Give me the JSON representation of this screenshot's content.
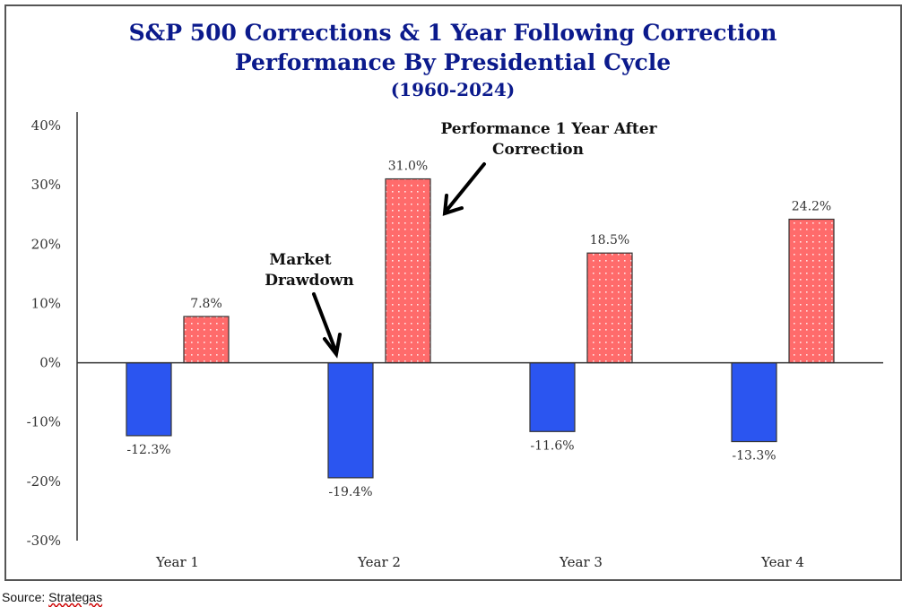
{
  "chart_data": {
    "type": "bar",
    "title": [
      "S&P 500 Corrections & 1 Year Following Correction",
      "Performance By Presidential Cycle",
      "(1960-2024)"
    ],
    "categories": [
      "Year 1",
      "Year 2",
      "Year 3",
      "Year 4"
    ],
    "series": [
      {
        "name": "Market Drawdown",
        "color": "#2b55f0",
        "values": [
          -12.3,
          -19.4,
          -11.6,
          -13.3
        ],
        "labels": [
          "-12.3%",
          "-19.4%",
          "-11.6%",
          "-13.3%"
        ]
      },
      {
        "name": "Performance 1 Year After Correction",
        "color": "#ff6b6b",
        "values": [
          7.8,
          31.0,
          18.5,
          24.2
        ],
        "labels": [
          "7.8%",
          "31.0%",
          "18.5%",
          "24.2%"
        ]
      }
    ],
    "ylim": [
      -30,
      40
    ],
    "yticks": [
      40,
      30,
      20,
      10,
      0,
      -10,
      -20,
      -30
    ],
    "ytick_labels": [
      "40%",
      "30%",
      "20%",
      "10%",
      "0%",
      "-10%",
      "-20%",
      "-30%"
    ],
    "annotations": {
      "drawdown": [
        "Market",
        "Drawdown"
      ],
      "performance": [
        "Performance 1 Year After",
        "Correction"
      ]
    },
    "grid": false
  },
  "source": {
    "prefix": "Source: ",
    "name": "Strategas"
  }
}
